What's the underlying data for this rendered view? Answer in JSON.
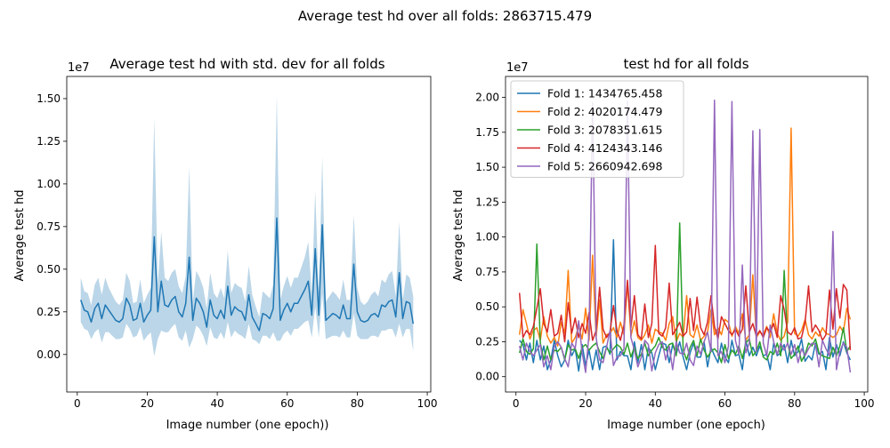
{
  "figure": {
    "suptitle": "Average test hd over all folds: 2863715.479"
  },
  "chart_data": [
    {
      "type": "line",
      "title": "Average test hd with std. dev for all folds",
      "xlabel": "Image number (one epoch))",
      "ylabel": "Average test hd",
      "offset_text": "1e7",
      "xlim": [
        -3,
        101
      ],
      "ylim": [
        -2200000,
        16300000
      ],
      "xticks": [
        0,
        20,
        40,
        60,
        80,
        100
      ],
      "yticks": [
        0,
        2500000,
        5000000,
        7500000,
        10000000,
        12500000,
        15000000
      ],
      "ytick_labels": [
        "0.00",
        "0.25",
        "0.50",
        "0.75",
        "1.00",
        "1.25",
        "1.50"
      ],
      "x": [
        1,
        2,
        3,
        4,
        5,
        6,
        7,
        8,
        9,
        10,
        11,
        12,
        13,
        14,
        15,
        16,
        17,
        18,
        19,
        20,
        21,
        22,
        23,
        24,
        25,
        26,
        27,
        28,
        29,
        30,
        31,
        32,
        33,
        34,
        35,
        36,
        37,
        38,
        39,
        40,
        41,
        42,
        43,
        44,
        45,
        46,
        47,
        48,
        49,
        50,
        51,
        52,
        53,
        54,
        55,
        56,
        57,
        58,
        59,
        60,
        61,
        62,
        63,
        64,
        65,
        66,
        67,
        68,
        69,
        70,
        71,
        72,
        73,
        74,
        75,
        76,
        77,
        78,
        79,
        80,
        81,
        82,
        83,
        84,
        85,
        86,
        87,
        88,
        89,
        90,
        91,
        92,
        93,
        94,
        95,
        96
      ],
      "series": [
        {
          "color": "#1f77b4",
          "values": [
            3200000,
            2600000,
            2500000,
            1900000,
            2700000,
            3000000,
            2100000,
            2900000,
            2600000,
            2300000,
            2000000,
            1900000,
            2100000,
            3300000,
            2900000,
            2000000,
            2100000,
            3000000,
            1900000,
            2300000,
            2600000,
            6900000,
            2500000,
            4300000,
            2900000,
            2800000,
            3200000,
            3400000,
            2500000,
            2200000,
            3000000,
            5700000,
            2000000,
            3300000,
            3000000,
            2500000,
            1600000,
            3200000,
            2300000,
            2100000,
            2600000,
            2100000,
            4000000,
            2300000,
            2800000,
            2600000,
            2500000,
            2000000,
            3500000,
            2200000,
            1800000,
            1400000,
            2400000,
            2300000,
            2100000,
            2700000,
            8000000,
            2000000,
            2600000,
            3000000,
            2500000,
            3000000,
            3000000,
            3400000,
            3800000,
            4300000,
            2300000,
            6200000,
            2300000,
            7600000,
            2000000,
            2200000,
            2400000,
            2300000,
            2100000,
            2900000,
            2100000,
            2100000,
            5300000,
            2500000,
            2000000,
            1900000,
            2000000,
            2300000,
            2400000,
            2200000,
            2900000,
            2800000,
            3100000,
            3200000,
            2200000,
            4800000,
            2100000,
            3100000,
            3000000,
            1800000
          ]
        }
      ],
      "band_std": [
        1300000,
        1100000,
        1100000,
        1000000,
        1400000,
        1500000,
        1400000,
        1600000,
        1300000,
        1200000,
        1100000,
        1000000,
        1100000,
        1500000,
        1400000,
        1000000,
        1000000,
        1400000,
        1100000,
        1200000,
        1300000,
        7000000,
        1600000,
        2900000,
        1600000,
        1500000,
        1600000,
        1600000,
        1500000,
        1400000,
        1600000,
        5300000,
        1100000,
        1600000,
        1500000,
        1400000,
        1100000,
        1600000,
        1300000,
        1200000,
        1300000,
        1200000,
        2100000,
        1300000,
        1400000,
        1400000,
        1400000,
        1100000,
        1700000,
        1300000,
        1000000,
        800000,
        1300000,
        1200000,
        1200000,
        1400000,
        7200000,
        1200000,
        1400000,
        1600000,
        1400000,
        1500000,
        1500000,
        1700000,
        1900000,
        2300000,
        1300000,
        3400000,
        1300000,
        4000000,
        1100000,
        1200000,
        1300000,
        1200000,
        1100000,
        1500000,
        1100000,
        1100000,
        2900000,
        1400000,
        1100000,
        1000000,
        1100000,
        1200000,
        1300000,
        1200000,
        1500000,
        1400000,
        1600000,
        1700000,
        1200000,
        3000000,
        1100000,
        1600000,
        1500000,
        1600000
      ],
      "band_color": "#1f77b4",
      "band_opacity": 0.3
    },
    {
      "type": "line",
      "title": "test hd for all folds",
      "xlabel": "Image number (one epoch)",
      "ylabel": "Average test hd",
      "offset_text": "1e7",
      "xlim": [
        -3,
        101
      ],
      "ylim": [
        -1100000,
        21500000
      ],
      "xticks": [
        0,
        20,
        40,
        60,
        80,
        100
      ],
      "yticks": [
        0,
        2500000,
        5000000,
        7500000,
        10000000,
        12500000,
        15000000,
        17500000,
        20000000
      ],
      "ytick_labels": [
        "0.00",
        "0.25",
        "0.50",
        "0.75",
        "1.00",
        "1.25",
        "1.50",
        "1.75",
        "2.00"
      ],
      "legend": "top-left",
      "x": [
        1,
        2,
        3,
        4,
        5,
        6,
        7,
        8,
        9,
        10,
        11,
        12,
        13,
        14,
        15,
        16,
        17,
        18,
        19,
        20,
        21,
        22,
        23,
        24,
        25,
        26,
        27,
        28,
        29,
        30,
        31,
        32,
        33,
        34,
        35,
        36,
        37,
        38,
        39,
        40,
        41,
        42,
        43,
        44,
        45,
        46,
        47,
        48,
        49,
        50,
        51,
        52,
        53,
        54,
        55,
        56,
        57,
        58,
        59,
        60,
        61,
        62,
        63,
        64,
        65,
        66,
        67,
        68,
        69,
        70,
        71,
        72,
        73,
        74,
        75,
        76,
        77,
        78,
        79,
        80,
        81,
        82,
        83,
        84,
        85,
        86,
        87,
        88,
        89,
        90,
        91,
        92,
        93,
        94,
        95,
        96
      ],
      "series": [
        {
          "name": "Fold 1: 1434765.458",
          "color": "#1f77b4",
          "values": [
            2600000,
            2300000,
            1200000,
            2400000,
            1000000,
            2600000,
            1200000,
            2200000,
            500000,
            1200000,
            2600000,
            1500000,
            700000,
            1200000,
            2600000,
            1500000,
            2000000,
            400000,
            2300000,
            800000,
            1900000,
            500000,
            1900000,
            500000,
            2100000,
            2200000,
            1600000,
            9800000,
            1200000,
            1800000,
            1500000,
            1500000,
            500000,
            2500000,
            1000000,
            2300000,
            500000,
            2100000,
            1700000,
            500000,
            1500000,
            2400000,
            2300000,
            1000000,
            2300000,
            1600000,
            2500000,
            1400000,
            500000,
            1700000,
            2400000,
            1400000,
            1400000,
            2500000,
            700000,
            2100000,
            1500000,
            1000000,
            2400000,
            1400000,
            1000000,
            2600000,
            1500000,
            1600000,
            500000,
            2600000,
            1500000,
            2100000,
            1500000,
            2200000,
            1500000,
            1600000,
            500000,
            2400000,
            1500000,
            1700000,
            2300000,
            1000000,
            2600000,
            1500000,
            1800000,
            2700000,
            1100000,
            1500000,
            1200000,
            2400000,
            1600000,
            1800000,
            500000,
            2800000,
            1400000,
            2300000,
            1500000,
            2500000,
            1700000,
            1200000
          ]
        },
        {
          "name": "Fold 2: 4020174.479",
          "color": "#ff7f0e",
          "values": [
            3000000,
            4800000,
            3800000,
            2700000,
            3300000,
            3500000,
            2600000,
            4300000,
            2900000,
            2400000,
            2800000,
            2200000,
            3900000,
            3100000,
            7600000,
            2400000,
            2800000,
            3600000,
            2700000,
            4900000,
            2600000,
            8700000,
            2800000,
            5500000,
            2400000,
            3000000,
            3100000,
            3500000,
            2800000,
            3900000,
            3000000,
            6800000,
            2900000,
            4000000,
            2800000,
            2600000,
            3000000,
            3700000,
            2400000,
            3400000,
            3200000,
            3100000,
            2600000,
            3800000,
            4300000,
            2500000,
            3100000,
            2800000,
            5800000,
            3000000,
            2800000,
            3700000,
            2600000,
            2900000,
            3200000,
            4800000,
            3000000,
            3500000,
            3000000,
            4100000,
            3900000,
            2900000,
            3600000,
            3100000,
            4500000,
            2600000,
            3000000,
            7300000,
            2800000,
            3200000,
            3000000,
            3600000,
            2800000,
            4500000,
            3100000,
            2600000,
            2900000,
            3900000,
            17800000,
            3100000,
            2900000,
            3300000,
            4100000,
            3000000,
            2700000,
            3200000,
            2900000,
            3500000,
            3100000,
            3000000,
            2800000,
            3000000,
            3600000,
            3200000,
            4900000,
            4100000
          ]
        },
        {
          "name": "Fold 3: 2078351.615",
          "color": "#2ca02c",
          "values": [
            1700000,
            2700000,
            1800000,
            1600000,
            2000000,
            9500000,
            2400000,
            1200000,
            2200000,
            1200000,
            1900000,
            1800000,
            2100000,
            1200000,
            2300000,
            1900000,
            2000000,
            1300000,
            2100000,
            2300000,
            1900000,
            2200000,
            2400000,
            1800000,
            1300000,
            2100000,
            1700000,
            2000000,
            2300000,
            2100000,
            1600000,
            2400000,
            1400000,
            2100000,
            1300000,
            1600000,
            2400000,
            1500000,
            1900000,
            2200000,
            2800000,
            2100000,
            1900000,
            2300000,
            2400000,
            1500000,
            11000000,
            1900000,
            1200000,
            2100000,
            2600000,
            1500000,
            2700000,
            1900000,
            1400000,
            1800000,
            2000000,
            1700000,
            1000000,
            2300000,
            1300000,
            1900000,
            1600000,
            2200000,
            1300000,
            2400000,
            2700000,
            1500000,
            1800000,
            2500000,
            1400000,
            1200000,
            1800000,
            1600000,
            2400000,
            1500000,
            7600000,
            2400000,
            1300000,
            1600000,
            2200000,
            1100000,
            1600000,
            2400000,
            2200000,
            2700000,
            1700000,
            1500000,
            1400000,
            1300000,
            2100000,
            1500000,
            2200000,
            3500000,
            1800000,
            2200000
          ]
        },
        {
          "name": "Fold 4: 4124343.146",
          "color": "#d62728",
          "values": [
            6000000,
            2800000,
            3300000,
            3000000,
            3600000,
            4900000,
            6300000,
            3800000,
            3200000,
            4800000,
            2900000,
            3100000,
            4400000,
            2500000,
            5300000,
            3100000,
            4200000,
            2800000,
            3800000,
            3100000,
            4600000,
            2600000,
            3300000,
            6400000,
            3400000,
            2800000,
            3200000,
            5100000,
            3300000,
            2600000,
            3700000,
            6900000,
            3500000,
            5800000,
            3000000,
            2700000,
            5200000,
            2800000,
            3800000,
            9400000,
            3100000,
            2900000,
            3500000,
            6700000,
            3000000,
            3400000,
            3900000,
            2900000,
            3200000,
            5600000,
            3300000,
            5700000,
            3500000,
            3000000,
            3900000,
            5800000,
            3600000,
            2700000,
            4300000,
            3800000,
            3300000,
            3000000,
            3400000,
            2900000,
            3400000,
            6500000,
            3200000,
            3800000,
            2900000,
            3300000,
            2800000,
            3500000,
            3200000,
            3800000,
            2800000,
            5800000,
            4800000,
            3200000,
            3000000,
            3500000,
            2700000,
            2800000,
            3900000,
            6500000,
            3200000,
            3700000,
            3300000,
            2600000,
            3000000,
            6200000,
            3400000,
            6300000,
            4200000,
            6600000,
            6200000,
            1900000
          ]
        },
        {
          "name": "Fold 5: 2660942.698",
          "color": "#9467bd",
          "values": [
            2200000,
            1200000,
            2400000,
            1800000,
            1500000,
            1900000,
            2300000,
            700000,
            1500000,
            500000,
            2200000,
            2500000,
            2100000,
            1300000,
            700000,
            2400000,
            2000000,
            4000000,
            1700000,
            300000,
            3100000,
            19600000,
            2800000,
            1200000,
            1000000,
            2100000,
            3300000,
            800000,
            1400000,
            1500000,
            2000000,
            19700000,
            2800000,
            1900000,
            700000,
            1400000,
            2600000,
            2300000,
            400000,
            1700000,
            2300000,
            2500000,
            1200000,
            2200000,
            500000,
            2500000,
            1700000,
            1600000,
            2400000,
            1200000,
            800000,
            2200000,
            1600000,
            2500000,
            3200000,
            1800000,
            19800000,
            1500000,
            1800000,
            1000000,
            2200000,
            19700000,
            2600000,
            1600000,
            8000000,
            1700000,
            2400000,
            17600000,
            1800000,
            17700000,
            2400000,
            1500000,
            3700000,
            2500000,
            1600000,
            2400000,
            1900000,
            2400000,
            1600000,
            2300000,
            1000000,
            2000000,
            1500000,
            2000000,
            2400000,
            2300000,
            700000,
            2600000,
            2000000,
            1500000,
            10400000,
            500000,
            1800000,
            2400000,
            2100000,
            300000
          ]
        }
      ]
    }
  ]
}
